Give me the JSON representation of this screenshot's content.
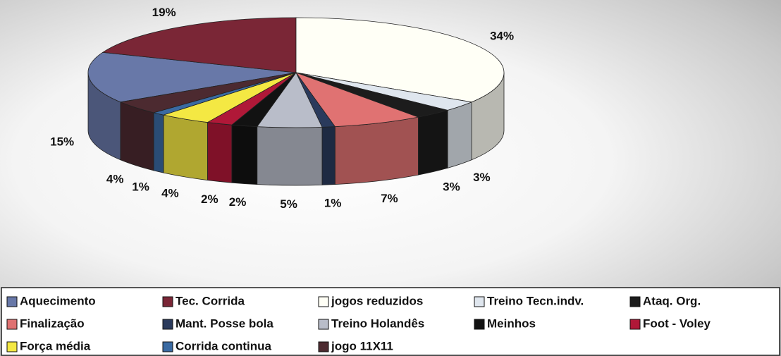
{
  "chart_data": {
    "type": "pie",
    "categories": [
      "Aquecimento",
      "Tec. Corrida",
      "jogos reduzidos",
      "Treino Tecn.indv.",
      "Ataq. Org.",
      "Finalização",
      "Mant. Posse bola",
      "Treino Holandês",
      "Meinhos",
      "Foot - Voley",
      "Força média",
      "Corrida continua",
      "jogo 11X11"
    ],
    "values": [
      15,
      19,
      34,
      3,
      3,
      7,
      1,
      5,
      2,
      2,
      4,
      1,
      4
    ],
    "value_labels": [
      "15%",
      "19%",
      "34%",
      "3%",
      "3%",
      "7%",
      "1%",
      "5%",
      "2%",
      "2%",
      "4%",
      "1%",
      "4%"
    ],
    "colors": [
      "#6878a8",
      "#7a2636",
      "#fffff6",
      "#dfe6ee",
      "#1c1c1c",
      "#e07272",
      "#2a3a5c",
      "#b9bdc9",
      "#121212",
      "#b01838",
      "#f4e843",
      "#3a6aa2",
      "#4c2a30"
    ],
    "legend": "bottom"
  }
}
